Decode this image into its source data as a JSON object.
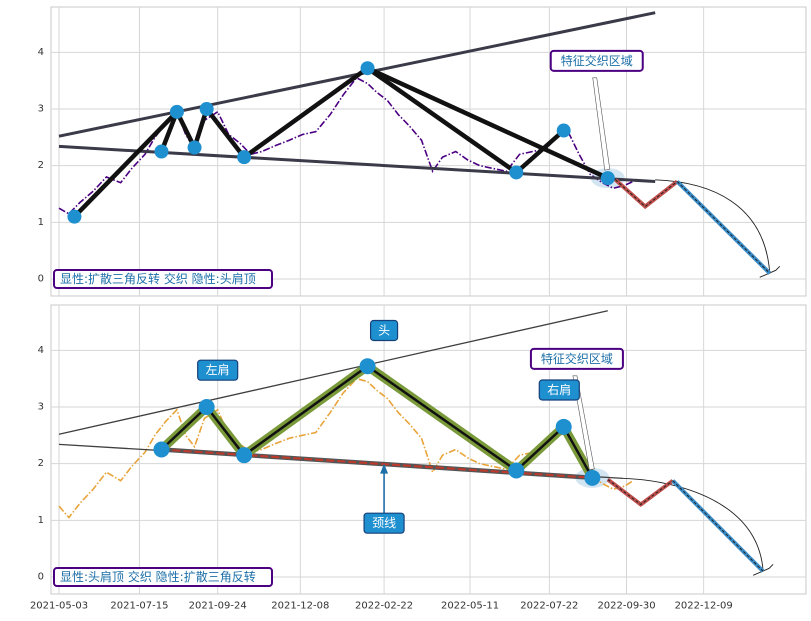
{
  "chart_data": [
    {
      "type": "line",
      "title": "",
      "xlabel": "",
      "ylabel": "",
      "ylim": [
        -0.3,
        4.8
      ],
      "yticks": [
        0,
        1,
        2,
        3,
        4
      ],
      "grid": true,
      "legend_text": "显性:扩散三角反转 交织 隐性:头肩顶",
      "annotations": [
        {
          "text": "特征交织区域",
          "style": "outlined",
          "anchor_date": "2022-09-13",
          "anchor_y": 1.78,
          "text_date": "2022-09-03",
          "text_y": 3.85
        }
      ],
      "series_color": "#4b0082",
      "series_style": "dashdot",
      "series": [
        {
          "values": [
            [
              "2021-05-03",
              1.25
            ],
            [
              "2021-05-12",
              1.15
            ],
            [
              "2021-05-22",
              1.35
            ],
            [
              "2021-06-03",
              1.55
            ],
            [
              "2021-06-15",
              1.8
            ],
            [
              "2021-06-28",
              1.7
            ],
            [
              "2021-07-08",
              1.95
            ],
            [
              "2021-07-20",
              2.2
            ],
            [
              "2021-07-29",
              2.5
            ],
            [
              "2021-08-08",
              2.75
            ],
            [
              "2021-08-18",
              2.95
            ],
            [
              "2021-08-26",
              2.55
            ],
            [
              "2021-09-03",
              2.3
            ],
            [
              "2021-09-12",
              2.8
            ],
            [
              "2021-09-24",
              2.95
            ],
            [
              "2021-10-04",
              2.55
            ],
            [
              "2021-10-14",
              2.4
            ],
            [
              "2021-10-24",
              2.2
            ],
            [
              "2021-11-03",
              2.25
            ],
            [
              "2021-11-15",
              2.35
            ],
            [
              "2021-11-28",
              2.45
            ],
            [
              "2021-12-10",
              2.55
            ],
            [
              "2021-12-22",
              2.6
            ],
            [
              "2022-01-04",
              2.9
            ],
            [
              "2022-01-16",
              3.25
            ],
            [
              "2022-01-28",
              3.55
            ],
            [
              "2022-02-07",
              3.45
            ],
            [
              "2022-02-15",
              3.3
            ],
            [
              "2022-02-25",
              3.15
            ],
            [
              "2022-03-07",
              2.9
            ],
            [
              "2022-03-17",
              2.7
            ],
            [
              "2022-03-28",
              2.45
            ],
            [
              "2022-04-07",
              1.9
            ],
            [
              "2022-04-16",
              2.15
            ],
            [
              "2022-04-28",
              2.25
            ],
            [
              "2022-05-09",
              2.1
            ],
            [
              "2022-05-20",
              2.0
            ],
            [
              "2022-06-01",
              1.95
            ],
            [
              "2022-06-13",
              1.9
            ],
            [
              "2022-06-25",
              2.2
            ],
            [
              "2022-07-07",
              2.25
            ],
            [
              "2022-07-19",
              2.3
            ],
            [
              "2022-07-31",
              2.55
            ],
            [
              "2022-08-08",
              2.6
            ],
            [
              "2022-08-18",
              2.2
            ],
            [
              "2022-08-28",
              1.85
            ],
            [
              "2022-09-08",
              1.7
            ],
            [
              "2022-09-18",
              1.6
            ],
            [
              "2022-09-28",
              1.65
            ],
            [
              "2022-10-06",
              1.72
            ]
          ]
        }
      ],
      "pattern_points": [
        [
          "2021-05-17",
          1.1
        ],
        [
          "2021-08-04",
          2.25
        ],
        [
          "2021-08-18",
          2.95
        ],
        [
          "2021-09-03",
          2.32
        ],
        [
          "2021-09-14",
          3.0
        ],
        [
          "2021-10-18",
          2.15
        ],
        [
          "2022-02-07",
          3.72
        ],
        [
          "2022-06-22",
          1.88
        ],
        [
          "2022-08-04",
          2.62
        ],
        [
          "2022-09-13",
          1.78
        ]
      ],
      "pattern_lines": [
        [
          [
            "2021-05-17",
            1.1
          ],
          [
            "2021-08-18",
            2.95
          ]
        ],
        [
          [
            "2021-08-04",
            2.25
          ],
          [
            "2021-08-18",
            2.95
          ]
        ],
        [
          [
            "2021-08-18",
            2.95
          ],
          [
            "2021-09-03",
            2.32
          ]
        ],
        [
          [
            "2021-09-03",
            2.32
          ],
          [
            "2021-09-14",
            3.0
          ]
        ],
        [
          [
            "2021-09-14",
            3.0
          ],
          [
            "2021-10-18",
            2.15
          ]
        ],
        [
          [
            "2021-10-18",
            2.15
          ],
          [
            "2022-02-07",
            3.72
          ]
        ],
        [
          [
            "2022-02-07",
            3.72
          ],
          [
            "2022-06-22",
            1.88
          ]
        ],
        [
          [
            "2022-02-07",
            3.72
          ],
          [
            "2022-09-13",
            1.78
          ]
        ],
        [
          [
            "2022-06-22",
            1.88
          ],
          [
            "2022-08-04",
            2.62
          ]
        ]
      ],
      "trend_lines": [
        [
          [
            "2021-05-03",
            2.52
          ],
          [
            "2022-10-26",
            4.7
          ]
        ],
        [
          [
            "2021-05-03",
            2.34
          ],
          [
            "2022-10-26",
            1.72
          ]
        ]
      ],
      "projection_red": [
        [
          "2022-09-20",
          1.75
        ],
        [
          "2022-10-17",
          1.28
        ],
        [
          "2022-11-15",
          1.72
        ]
      ],
      "projection_blue": [
        [
          "2022-11-15",
          1.72
        ],
        [
          "2023-02-07",
          0.1
        ]
      ],
      "projection_arc": [
        [
          "2022-10-26",
          1.75
        ],
        [
          "2023-02-07",
          0.1
        ]
      ],
      "highlight_center": [
        "2022-09-13",
        1.78
      ]
    },
    {
      "type": "line",
      "title": "",
      "xlabel": "",
      "ylabel": "",
      "ylim": [
        -0.3,
        4.8
      ],
      "yticks": [
        0,
        1,
        2,
        3,
        4
      ],
      "xticks": [
        "2021-05-03",
        "2021-07-15",
        "2021-09-24",
        "2021-12-08",
        "2022-02-22",
        "2022-05-11",
        "2022-07-22",
        "2022-09-30",
        "2022-12-09"
      ],
      "grid": true,
      "legend_text": "显性:头肩顶 交织 隐性:扩散三角反转",
      "annotations": [
        {
          "text": "特征交织区域",
          "style": "outlined",
          "anchor_date": "2022-08-30",
          "anchor_y": 1.75,
          "text_date": "2022-08-16",
          "text_y": 3.85
        },
        {
          "text": "头",
          "style": "filled",
          "text_date": "2022-02-22",
          "text_y": 4.35
        },
        {
          "text": "左肩",
          "style": "filled",
          "text_date": "2021-09-24",
          "text_y": 3.65
        },
        {
          "text": "右肩",
          "style": "filled",
          "text_date": "2022-07-31",
          "text_y": 3.3
        },
        {
          "text": "颈线",
          "style": "filled",
          "anchor_date": "2022-02-22",
          "anchor_y": 2.0,
          "text_date": "2022-02-22",
          "text_y": 0.95
        }
      ],
      "series_color": "#e8a43a",
      "series_style": "dashdot",
      "series": [
        {
          "values": [
            [
              "2021-05-03",
              1.25
            ],
            [
              "2021-05-12",
              1.05
            ],
            [
              "2021-05-22",
              1.3
            ],
            [
              "2021-06-03",
              1.55
            ],
            [
              "2021-06-15",
              1.85
            ],
            [
              "2021-06-28",
              1.7
            ],
            [
              "2021-07-08",
              1.95
            ],
            [
              "2021-07-20",
              2.2
            ],
            [
              "2021-07-29",
              2.5
            ],
            [
              "2021-08-08",
              2.75
            ],
            [
              "2021-08-18",
              2.95
            ],
            [
              "2021-08-26",
              2.5
            ],
            [
              "2021-09-03",
              2.3
            ],
            [
              "2021-09-12",
              2.8
            ],
            [
              "2021-09-24",
              2.95
            ],
            [
              "2021-10-04",
              2.5
            ],
            [
              "2021-10-14",
              2.35
            ],
            [
              "2021-10-24",
              2.2
            ],
            [
              "2021-11-03",
              2.25
            ],
            [
              "2021-11-15",
              2.35
            ],
            [
              "2021-11-28",
              2.45
            ],
            [
              "2021-12-10",
              2.5
            ],
            [
              "2021-12-22",
              2.55
            ],
            [
              "2022-01-04",
              2.9
            ],
            [
              "2022-01-16",
              3.25
            ],
            [
              "2022-01-28",
              3.5
            ],
            [
              "2022-02-07",
              3.45
            ],
            [
              "2022-02-15",
              3.3
            ],
            [
              "2022-02-25",
              3.15
            ],
            [
              "2022-03-07",
              2.9
            ],
            [
              "2022-03-17",
              2.7
            ],
            [
              "2022-03-28",
              2.45
            ],
            [
              "2022-04-07",
              1.85
            ],
            [
              "2022-04-16",
              2.15
            ],
            [
              "2022-04-28",
              2.25
            ],
            [
              "2022-05-09",
              2.1
            ],
            [
              "2022-05-20",
              2.0
            ],
            [
              "2022-06-01",
              1.95
            ],
            [
              "2022-06-13",
              1.9
            ],
            [
              "2022-06-25",
              2.15
            ],
            [
              "2022-07-07",
              2.2
            ],
            [
              "2022-07-19",
              2.3
            ],
            [
              "2022-07-31",
              2.5
            ],
            [
              "2022-08-08",
              2.55
            ],
            [
              "2022-08-18",
              2.1
            ],
            [
              "2022-08-28",
              1.8
            ],
            [
              "2022-09-08",
              1.65
            ],
            [
              "2022-09-18",
              1.55
            ],
            [
              "2022-09-28",
              1.6
            ],
            [
              "2022-10-06",
              1.7
            ]
          ]
        }
      ],
      "pattern_points": [
        [
          "2021-08-04",
          2.25
        ],
        [
          "2021-09-14",
          3.0
        ],
        [
          "2021-10-18",
          2.15
        ],
        [
          "2022-02-07",
          3.72
        ],
        [
          "2022-06-22",
          1.88
        ],
        [
          "2022-08-04",
          2.65
        ],
        [
          "2022-08-30",
          1.75
        ]
      ],
      "pattern_lines": [
        [
          [
            "2021-08-04",
            2.25
          ],
          [
            "2021-09-14",
            3.0
          ]
        ],
        [
          [
            "2021-09-14",
            3.0
          ],
          [
            "2021-10-18",
            2.15
          ]
        ],
        [
          [
            "2021-10-18",
            2.15
          ],
          [
            "2022-02-07",
            3.72
          ]
        ],
        [
          [
            "2022-02-07",
            3.72
          ],
          [
            "2022-06-22",
            1.88
          ]
        ],
        [
          [
            "2022-06-22",
            1.88
          ],
          [
            "2022-08-04",
            2.65
          ]
        ],
        [
          [
            "2022-08-04",
            2.65
          ],
          [
            "2022-08-30",
            1.75
          ]
        ]
      ],
      "neckline": [
        [
          "2021-08-04",
          2.25
        ],
        [
          "2022-08-30",
          1.75
        ]
      ],
      "trend_lines": [
        [
          [
            "2021-05-03",
            2.52
          ],
          [
            "2022-09-13",
            4.7
          ]
        ],
        [
          [
            "2021-05-03",
            2.34
          ],
          [
            "2022-09-27",
            1.74
          ]
        ]
      ],
      "projection_red": [
        [
          "2022-09-13",
          1.72
        ],
        [
          "2022-10-13",
          1.28
        ],
        [
          "2022-11-11",
          1.7
        ]
      ],
      "projection_blue": [
        [
          "2022-11-11",
          1.7
        ],
        [
          "2023-02-01",
          0.1
        ]
      ],
      "projection_arc": [
        [
          "2022-09-27",
          1.74
        ],
        [
          "2023-02-01",
          0.1
        ]
      ],
      "highlight_center": [
        "2022-08-30",
        1.75
      ]
    }
  ]
}
